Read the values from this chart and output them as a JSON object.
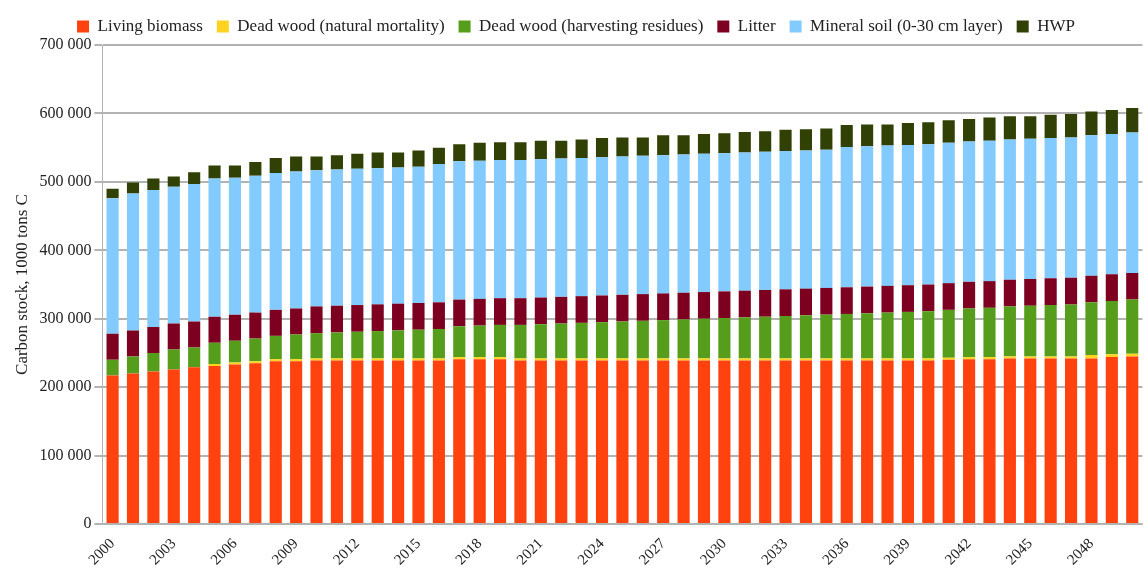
{
  "chart_data": {
    "type": "bar",
    "stacked": true,
    "ylabel": "Carbon stock, 1000 tons C",
    "categories": [
      "2000",
      null,
      null,
      "2003",
      null,
      null,
      "2006",
      null,
      null,
      "2009",
      null,
      null,
      "2012",
      null,
      null,
      "2015",
      null,
      null,
      "2018",
      null,
      null,
      "2021",
      null,
      null,
      "2024",
      null,
      null,
      "2027",
      null,
      null,
      "2030",
      null,
      null,
      "2033",
      null,
      null,
      "2036",
      null,
      null,
      "2039",
      null,
      null,
      "2042",
      null,
      null,
      "2045",
      null,
      null,
      "2048",
      null,
      null
    ],
    "series": [
      {
        "name": "Living biomass",
        "color": "#ff420e",
        "values": [
          217000,
          220000,
          223000,
          226000,
          229000,
          231000,
          233000,
          235000,
          238000,
          238000,
          239000,
          239000,
          239000,
          239000,
          239000,
          239000,
          239000,
          241000,
          241000,
          241000,
          239000,
          239000,
          239000,
          239000,
          239000,
          239000,
          239000,
          239000,
          239000,
          239000,
          239000,
          239000,
          239000,
          239000,
          239000,
          239000,
          239000,
          239000,
          239000,
          239000,
          239000,
          240000,
          241000,
          241000,
          242000,
          242000,
          242000,
          242000,
          242000,
          244000,
          245000
        ]
      },
      {
        "name": "Dead wood (natural mortality)",
        "color": "#ffd320",
        "values": [
          null,
          null,
          null,
          null,
          null,
          3000,
          3000,
          3000,
          3000,
          3000,
          3000,
          3000,
          3000,
          3000,
          3000,
          3000,
          3000,
          3000,
          3000,
          3000,
          3000,
          3000,
          3000,
          3000,
          3000,
          3000,
          3000,
          3000,
          3000,
          3000,
          3000,
          3000,
          3000,
          3000,
          3000,
          3000,
          3000,
          3000,
          3000,
          3000,
          3000,
          3000,
          3000,
          3000,
          3000,
          3000,
          3000,
          3000,
          5000,
          4000,
          4000
        ]
      },
      {
        "name": "Dead wood (harvesting residues)",
        "color": "#579d1c",
        "values": [
          23000,
          25000,
          27000,
          29000,
          29000,
          31000,
          32000,
          33000,
          34000,
          36000,
          37000,
          38000,
          39000,
          40000,
          41000,
          42000,
          43000,
          45000,
          46000,
          47000,
          49000,
          50000,
          51000,
          52000,
          53000,
          54000,
          55000,
          56000,
          57000,
          58000,
          59000,
          60000,
          61000,
          62000,
          63000,
          64000,
          65000,
          66000,
          67000,
          68000,
          69000,
          70000,
          71000,
          72000,
          73000,
          74000,
          75000,
          76000,
          77000,
          78000,
          79000
        ]
      },
      {
        "name": "Litter",
        "color": "#7e0021",
        "values": [
          38000,
          38000,
          38000,
          38000,
          38000,
          38000,
          38000,
          38000,
          38000,
          38000,
          39000,
          39000,
          39000,
          39000,
          39000,
          39000,
          39000,
          39000,
          39000,
          39000,
          39000,
          39000,
          39000,
          39000,
          39000,
          39000,
          39000,
          39000,
          39000,
          39000,
          39000,
          39000,
          39000,
          39000,
          39000,
          39000,
          39000,
          39000,
          39000,
          39000,
          39000,
          39000,
          39000,
          39000,
          39000,
          39000,
          39000,
          39000,
          39000,
          39000,
          39000
        ]
      },
      {
        "name": "Mineral soil (0-30 cm layer)",
        "color": "#83caff",
        "values": [
          198000,
          200000,
          200000,
          200000,
          201000,
          202000,
          200000,
          200000,
          200000,
          200000,
          199000,
          199000,
          199000,
          199000,
          199000,
          199000,
          202000,
          202000,
          202000,
          202000,
          202000,
          202000,
          202000,
          202000,
          202000,
          202000,
          202000,
          202000,
          202000,
          202000,
          202000,
          202000,
          202000,
          202000,
          202000,
          202000,
          205000,
          205000,
          205000,
          205000,
          205000,
          205000,
          205000,
          205000,
          205000,
          205000,
          205000,
          205000,
          205000,
          205000,
          205000
        ]
      },
      {
        "name": "HWP",
        "color": "#314004",
        "values": [
          14000,
          16000,
          17000,
          15000,
          17000,
          19000,
          18000,
          20000,
          22000,
          22000,
          20000,
          21000,
          22000,
          23000,
          22000,
          24000,
          24000,
          25000,
          26000,
          26000,
          26000,
          27000,
          26000,
          27000,
          28000,
          28000,
          27000,
          29000,
          28000,
          29000,
          29000,
          30000,
          30000,
          31000,
          31000,
          31000,
          32000,
          32000,
          31000,
          32000,
          32000,
          33000,
          33000,
          34000,
          34000,
          33000,
          34000,
          34000,
          35000,
          35000,
          36000
        ]
      }
    ],
    "ylim": [
      0,
      700000
    ],
    "yticks": [
      {
        "value": 0,
        "label": "0"
      },
      {
        "value": 100000,
        "label": "100 000"
      },
      {
        "value": 200000,
        "label": "200 000"
      },
      {
        "value": 300000,
        "label": "300 000"
      },
      {
        "value": 400000,
        "label": "400 000"
      },
      {
        "value": 500000,
        "label": "500 000"
      },
      {
        "value": 600000,
        "label": "600 000"
      },
      {
        "value": 700000,
        "label": "700 000"
      }
    ],
    "grid": "y",
    "legend": "top"
  }
}
